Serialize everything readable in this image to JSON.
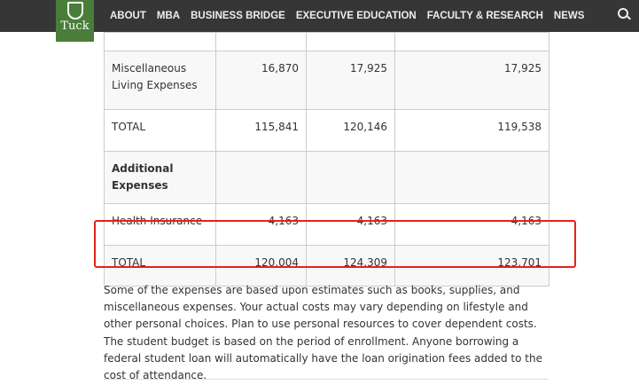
{
  "nav": {
    "logo_text": "Tuck",
    "items": [
      "ABOUT",
      "MBA",
      "BUSINESS BRIDGE",
      "EXECUTIVE EDUCATION",
      "FACULTY & RESEARCH",
      "NEWS"
    ],
    "search_icon": "search-icon"
  },
  "table": {
    "rows": [
      {
        "label": "Miscellaneous Living Expenses",
        "values": [
          "16,870",
          "17,925",
          "17,925"
        ]
      },
      {
        "label": "TOTAL",
        "values": [
          "115,841",
          "120,146",
          "119,538"
        ]
      },
      {
        "label": "Additional Expenses",
        "values": [
          "",
          "",
          ""
        ]
      },
      {
        "label": "Health Insurance",
        "values": [
          "4,163",
          "4,163",
          "4,163"
        ]
      },
      {
        "label": "TOTAL",
        "values": [
          "120,004",
          "124,309",
          "123,701"
        ]
      }
    ]
  },
  "highlight_color": "#e8201a",
  "note": "Some of the expenses are based upon estimates such as books, supplies, and miscellaneous expenses. Your actual costs may vary depending on lifestyle and other personal choices. Plan to use personal resources to cover dependent costs. The student budget is based on the period of enrollment. Anyone borrowing a federal student loan will automatically have the loan origination fees added to the cost of attendance."
}
